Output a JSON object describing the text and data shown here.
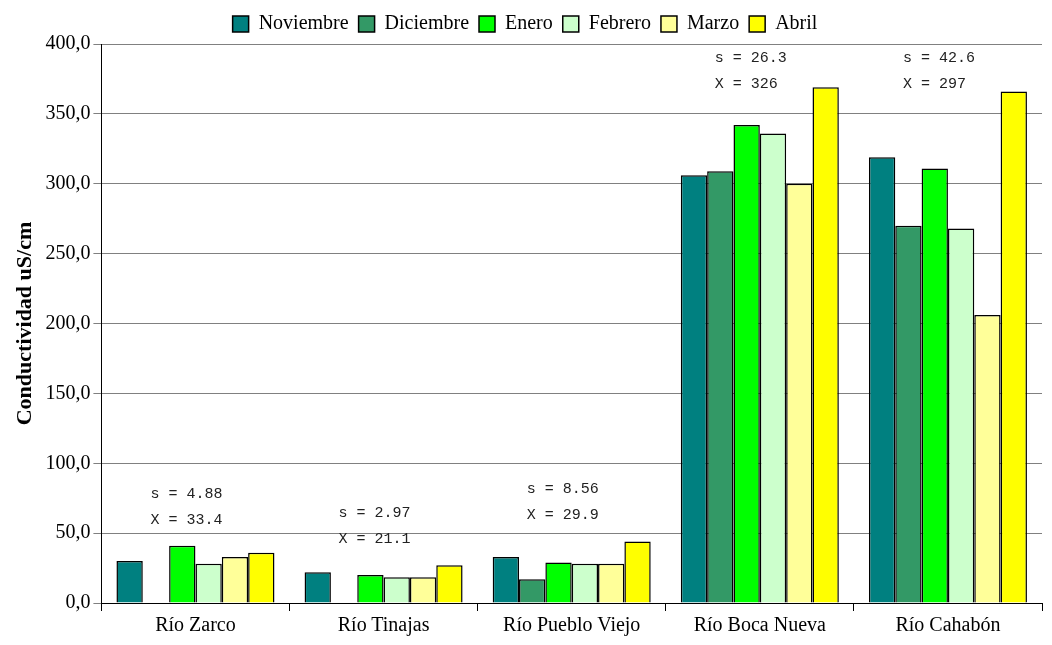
{
  "chart_data": {
    "type": "bar",
    "ylabel": "Conductividad uS/cm",
    "categories": [
      "Río Zarco",
      "Río Tinajas",
      "Río Pueblo Viejo",
      "Río Boca Nueva",
      "Río Cahabón"
    ],
    "series": [
      {
        "name": "Noviembre",
        "color": "#008080",
        "values": [
          30,
          22,
          33,
          306,
          319
        ]
      },
      {
        "name": "Diciembre",
        "color": "#339966",
        "values": [
          null,
          null,
          17,
          309,
          270
        ]
      },
      {
        "name": "Enero",
        "color": "#00ff00",
        "values": [
          41,
          20,
          29,
          342,
          311
        ]
      },
      {
        "name": "Febrero",
        "color": "#ccffcc",
        "values": [
          28,
          18.5,
          28,
          336,
          268
        ]
      },
      {
        "name": "Marzo",
        "color": "#ffff99",
        "values": [
          33,
          18.5,
          28,
          300,
          206
        ]
      },
      {
        "name": "Abril",
        "color": "#ffff00",
        "values": [
          36,
          27,
          44,
          369,
          366
        ]
      }
    ],
    "ylim": [
      0,
      400
    ],
    "yticks": [
      {
        "value": 0,
        "label": "0,0"
      },
      {
        "value": 50,
        "label": "50,0"
      },
      {
        "value": 100,
        "label": "100,0"
      },
      {
        "value": 150,
        "label": "150,0"
      },
      {
        "value": 200,
        "label": "200,0"
      },
      {
        "value": 250,
        "label": "250,0"
      },
      {
        "value": 300,
        "label": "300,0"
      },
      {
        "value": 350,
        "label": "350,0"
      },
      {
        "value": 400,
        "label": "400,0"
      }
    ],
    "grid": "y",
    "legend": "top",
    "annotations": [
      "s = 4.88",
      "X = 33.4",
      "s = 2.97",
      "X = 21.1",
      "s = 8.56",
      "X = 29.9",
      "s = 26.3",
      "X = 326",
      "s = 42.6",
      "X = 297"
    ]
  }
}
